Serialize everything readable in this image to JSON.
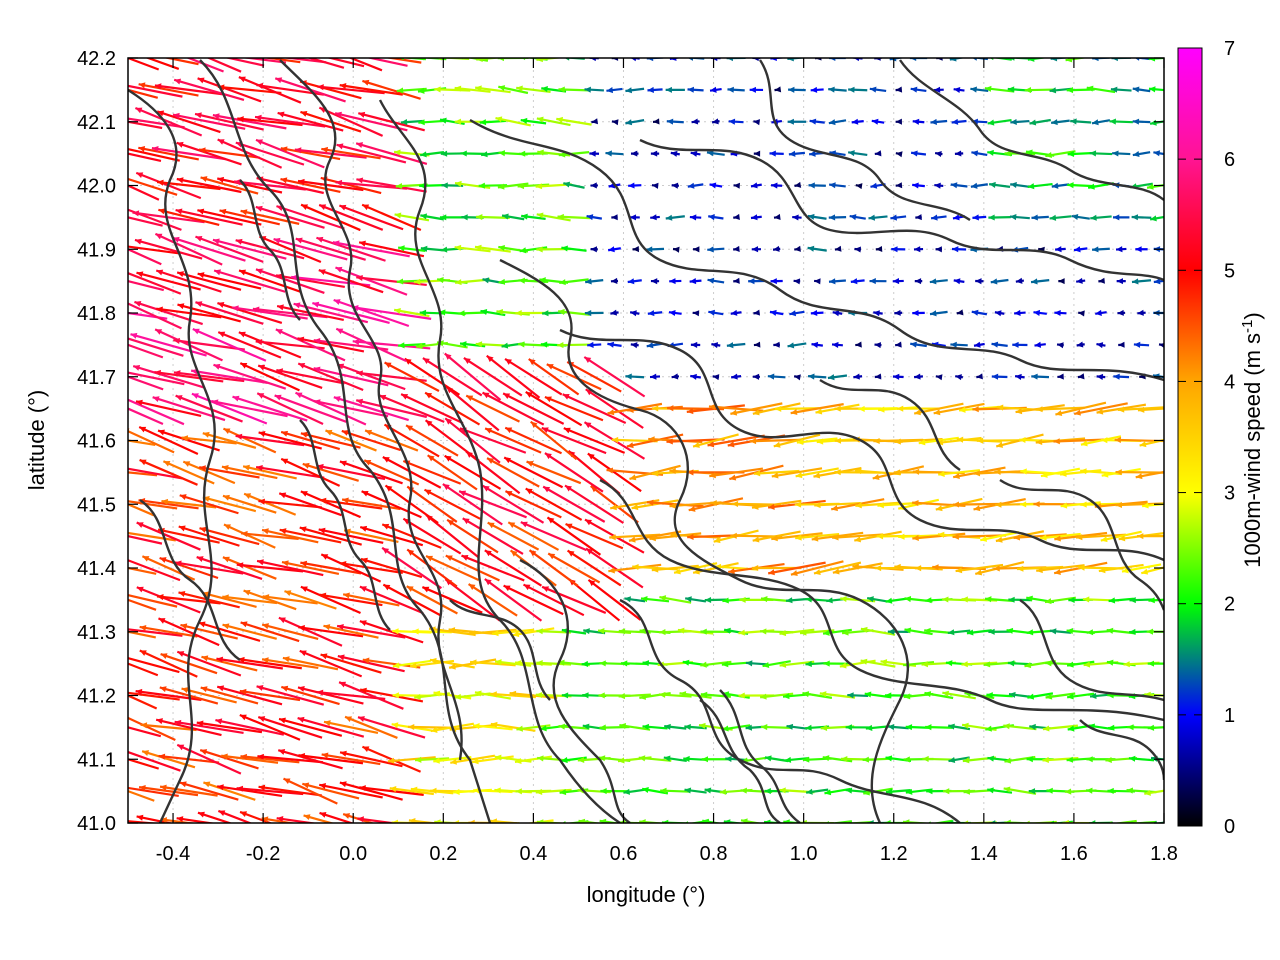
{
  "chart_data": {
    "type": "vector-field",
    "xlabel": "longitude (°)",
    "ylabel": "latitude (°)",
    "xlim": [
      -0.5,
      1.8
    ],
    "ylim": [
      41.0,
      42.2
    ],
    "xticks": [
      "-0.4",
      "-0.2",
      "0.0",
      "0.2",
      "0.4",
      "0.6",
      "0.8",
      "1.0",
      "1.2",
      "1.4",
      "1.6",
      "1.8"
    ],
    "xtick_values": [
      -0.4,
      -0.2,
      0.0,
      0.2,
      0.4,
      0.6,
      0.8,
      1.0,
      1.2,
      1.4,
      1.6,
      1.8
    ],
    "yticks": [
      "41.0",
      "41.1",
      "41.2",
      "41.3",
      "41.4",
      "41.5",
      "41.6",
      "41.7",
      "41.8",
      "41.9",
      "42.0",
      "42.1",
      "42.2"
    ],
    "ytick_values": [
      41.0,
      41.1,
      41.2,
      41.3,
      41.4,
      41.5,
      41.6,
      41.7,
      41.8,
      41.9,
      42.0,
      42.1,
      42.2
    ],
    "grid": true,
    "colorbar": {
      "label": "1000m-wind speed (m s-1)",
      "label_main": "1000m-wind speed (m s",
      "label_sup": "-1",
      "label_close": ")",
      "range": [
        0,
        7
      ],
      "ticks": [
        "0",
        "1",
        "2",
        "3",
        "4",
        "5",
        "6",
        "7"
      ],
      "tick_values": [
        0,
        1,
        2,
        3,
        4,
        5,
        6,
        7
      ],
      "colors": [
        "#000000",
        "#0000ff",
        "#00ff00",
        "#ffff00",
        "#ffa500",
        "#ff0000",
        "#ff00ff"
      ]
    },
    "wind_regions": [
      {
        "lon": [
          -0.5,
          0.1
        ],
        "lat": [
          41.0,
          42.2
        ],
        "speed": 4.8,
        "direction": "from east-southeast"
      },
      {
        "lon": [
          0.1,
          0.6
        ],
        "lat": [
          41.3,
          41.7
        ],
        "speed": 5.2,
        "direction": "from southeast"
      },
      {
        "lon": [
          0.2,
          0.5
        ],
        "lat": [
          41.7,
          42.2
        ],
        "speed": 2.0,
        "direction": "from east"
      },
      {
        "lon": [
          0.5,
          1.5
        ],
        "lat": [
          41.6,
          42.2
        ],
        "speed": 0.8,
        "direction": "from east"
      },
      {
        "lon": [
          0.6,
          1.8
        ],
        "lat": [
          41.0,
          41.35
        ],
        "speed": 2.2,
        "direction": "from east"
      },
      {
        "lon": [
          1.1,
          1.8
        ],
        "lat": [
          41.35,
          41.65
        ],
        "speed": 3.6,
        "direction": "from east"
      }
    ],
    "contours": "terrain height isolines"
  }
}
